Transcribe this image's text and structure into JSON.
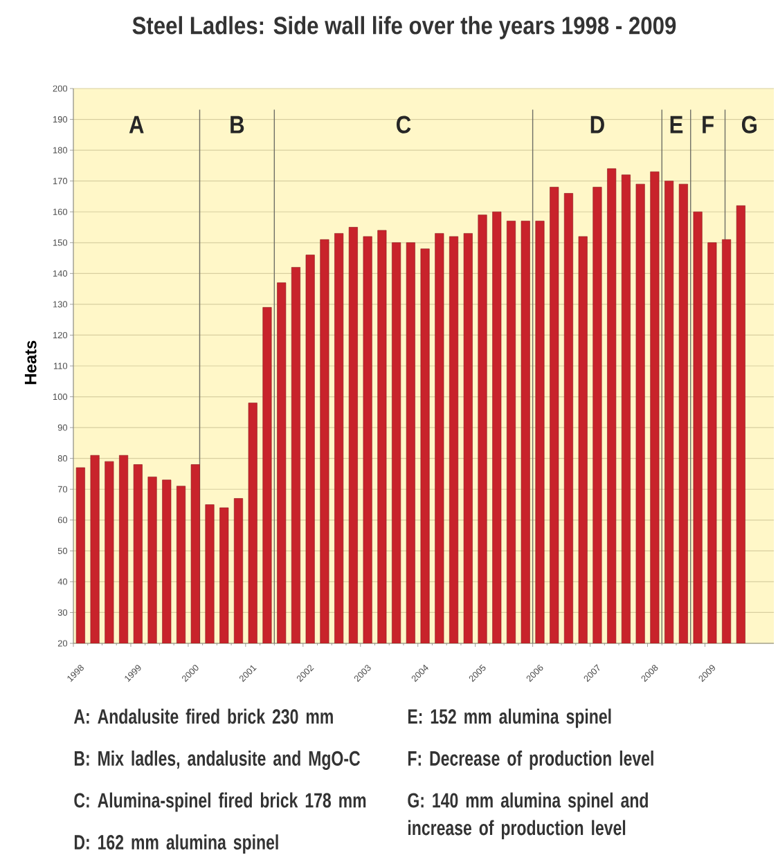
{
  "chart_data": {
    "type": "bar",
    "title": "Steel Ladles: Side wall life over the years 1998 - 2009",
    "ylabel": "Heats",
    "x": [
      1998.125,
      1998.375,
      1998.625,
      1998.875,
      1999.125,
      1999.375,
      1999.625,
      1999.875,
      2000.125,
      2000.375,
      2000.625,
      2000.875,
      2001.125,
      2001.375,
      2001.625,
      2001.875,
      2002.125,
      2002.375,
      2002.625,
      2002.875,
      2003.125,
      2003.375,
      2003.625,
      2003.875,
      2004.125,
      2004.375,
      2004.625,
      2004.875,
      2005.125,
      2005.375,
      2005.625,
      2005.875,
      2006.125,
      2006.375,
      2006.625,
      2006.875,
      2007.125,
      2007.375,
      2007.625,
      2007.875,
      2008.125,
      2008.375,
      2008.625,
      2008.875,
      2009.125,
      2009.375,
      2009.625
    ],
    "values": [
      77,
      81,
      79,
      81,
      78,
      74,
      73,
      71,
      78,
      65,
      64,
      67,
      98,
      129,
      137,
      142,
      146,
      151,
      153,
      155,
      152,
      154,
      150,
      150,
      148,
      153,
      152,
      153,
      159,
      160,
      157,
      157,
      157,
      168,
      166,
      152,
      168,
      174,
      172,
      169,
      173,
      170,
      169,
      160,
      150,
      151,
      162
    ],
    "color": "#c8232b",
    "xlim": [
      1998,
      2010.2
    ],
    "xticks": [
      1998,
      1999,
      2000,
      2001,
      2002,
      2003,
      2004,
      2005,
      2006,
      2007,
      2008,
      2009
    ],
    "ylim": [
      20,
      200
    ],
    "yticks": [
      20,
      30,
      40,
      50,
      60,
      70,
      80,
      90,
      100,
      110,
      120,
      130,
      140,
      150,
      160,
      170,
      180,
      190,
      200
    ],
    "grid": "y",
    "ref_lines": [
      {
        "axis": "x",
        "value": 2000.2,
        "color": "#6f6f66"
      },
      {
        "axis": "x",
        "value": 2001.5,
        "color": "#6f6f66"
      },
      {
        "axis": "x",
        "value": 2006,
        "color": "#6f6f66"
      },
      {
        "axis": "x",
        "value": 2008.25,
        "color": "#6f6f66"
      },
      {
        "axis": "x",
        "value": 2008.75,
        "color": "#6f6f66"
      },
      {
        "axis": "x",
        "value": 2009.35,
        "color": "#6f6f66"
      }
    ],
    "annotations": [
      "A",
      "B",
      "C",
      "D",
      "E",
      "F",
      "G",
      "A: Andalusite fired brick 230 mm",
      "B: Mix ladles, andalusite and MgO-C",
      "C: Alumina-spinel fired brick 178 mm",
      "D: 162 mm alumina spinel",
      "E: 152 mm alumina spinel",
      "F: Decrease of production level",
      "G: 140 mm alumina spinel and increase of production level"
    ]
  }
}
